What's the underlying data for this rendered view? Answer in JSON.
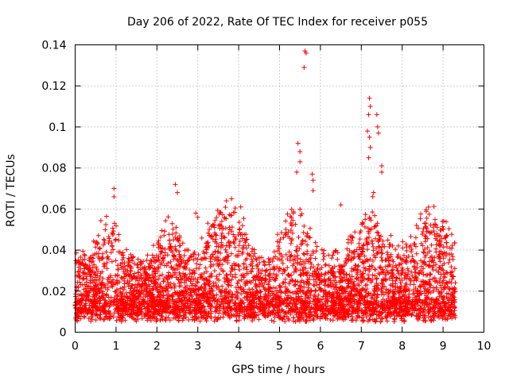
{
  "chart_data": {
    "type": "scatter",
    "title": "Day 206 of 2022, Rate Of TEC Index for receiver p055",
    "xlabel": "GPS time / hours",
    "ylabel": "ROTI / TECUs",
    "xlim": [
      0,
      10
    ],
    "ylim": [
      0,
      0.14
    ],
    "xticks": [
      0,
      1,
      2,
      3,
      4,
      5,
      6,
      7,
      8,
      9,
      10
    ],
    "yticks": [
      0,
      0.02,
      0.04,
      0.06,
      0.08,
      0.1,
      0.12,
      0.14
    ],
    "xtick_labels": [
      "0",
      "1",
      "2",
      "3",
      "4",
      "5",
      "6",
      "7",
      "8",
      "9",
      "10"
    ],
    "ytick_labels": [
      "0",
      "0.02",
      "0.04",
      "0.06",
      "0.08",
      "0.1",
      "0.12",
      "0.14"
    ],
    "grid": true,
    "marker": "+",
    "color": "#ff0000",
    "series": [
      {
        "name": "ROTI",
        "x_range": [
          0,
          9.3
        ],
        "baseline_band": [
          0.005,
          0.03
        ],
        "dense_points_description_count": 4500,
        "notable_points": [
          {
            "x": 0.95,
            "y": 0.07
          },
          {
            "x": 0.95,
            "y": 0.066
          },
          {
            "x": 2.45,
            "y": 0.072
          },
          {
            "x": 2.5,
            "y": 0.068
          },
          {
            "x": 2.95,
            "y": 0.058
          },
          {
            "x": 3.0,
            "y": 0.056
          },
          {
            "x": 3.7,
            "y": 0.064
          },
          {
            "x": 4.05,
            "y": 0.061
          },
          {
            "x": 5.45,
            "y": 0.092
          },
          {
            "x": 5.5,
            "y": 0.088
          },
          {
            "x": 5.5,
            "y": 0.083
          },
          {
            "x": 5.42,
            "y": 0.078
          },
          {
            "x": 5.62,
            "y": 0.137
          },
          {
            "x": 5.65,
            "y": 0.136
          },
          {
            "x": 5.6,
            "y": 0.129
          },
          {
            "x": 5.8,
            "y": 0.077
          },
          {
            "x": 5.82,
            "y": 0.074
          },
          {
            "x": 5.82,
            "y": 0.069
          },
          {
            "x": 6.5,
            "y": 0.062
          },
          {
            "x": 7.2,
            "y": 0.114
          },
          {
            "x": 7.22,
            "y": 0.11
          },
          {
            "x": 7.18,
            "y": 0.106
          },
          {
            "x": 7.15,
            "y": 0.098
          },
          {
            "x": 7.2,
            "y": 0.095
          },
          {
            "x": 7.22,
            "y": 0.09
          },
          {
            "x": 7.18,
            "y": 0.085
          },
          {
            "x": 7.38,
            "y": 0.106
          },
          {
            "x": 7.4,
            "y": 0.1
          },
          {
            "x": 7.42,
            "y": 0.097
          },
          {
            "x": 7.5,
            "y": 0.081
          },
          {
            "x": 7.5,
            "y": 0.078
          },
          {
            "x": 7.3,
            "y": 0.068
          },
          {
            "x": 7.28,
            "y": 0.066
          },
          {
            "x": 8.35,
            "y": 0.052
          },
          {
            "x": 8.85,
            "y": 0.048
          }
        ]
      }
    ]
  }
}
